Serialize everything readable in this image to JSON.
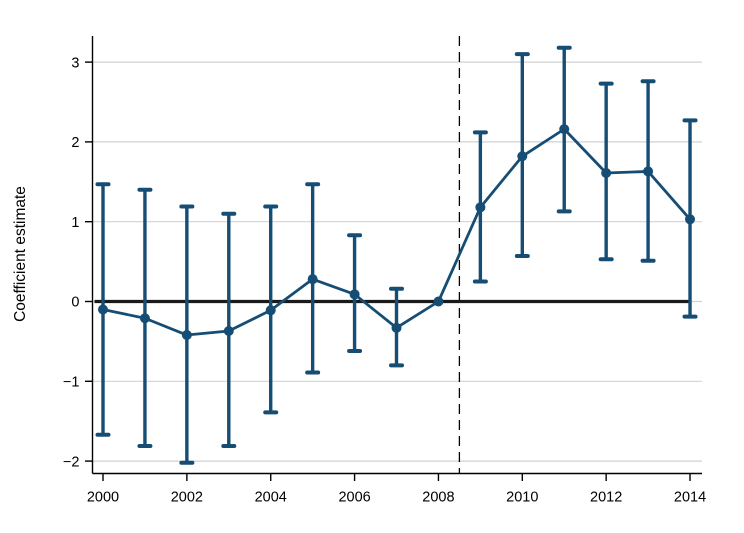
{
  "chart_data": {
    "type": "line",
    "subtype": "coefficient-plot-with-error-bars",
    "title": "",
    "xlabel": "",
    "ylabel": "Coefficient estimate",
    "x": [
      2000,
      2001,
      2002,
      2003,
      2004,
      2005,
      2006,
      2007,
      2008,
      2009,
      2010,
      2011,
      2012,
      2013,
      2014
    ],
    "series": [
      {
        "name": "coefficient-estimate",
        "values": [
          -0.1,
          -0.21,
          -0.42,
          -0.37,
          -0.11,
          0.28,
          0.09,
          -0.33,
          0.0,
          1.18,
          1.82,
          2.16,
          1.61,
          1.63,
          1.03
        ],
        "ci_lower": [
          -1.67,
          -1.81,
          -2.02,
          -1.81,
          -1.39,
          -0.89,
          -0.62,
          -0.8,
          null,
          0.25,
          0.57,
          1.13,
          0.53,
          0.51,
          -0.19
        ],
        "ci_upper": [
          1.47,
          1.4,
          1.19,
          1.1,
          1.19,
          1.47,
          0.83,
          0.16,
          null,
          2.12,
          3.1,
          3.18,
          2.73,
          2.76,
          2.27
        ]
      }
    ],
    "reference_year_no_ci": 2008,
    "reference_line_y": 0,
    "vertical_dashed_line_x": 2008.5,
    "x_ticks": [
      2000,
      2002,
      2004,
      2006,
      2008,
      2010,
      2012,
      2014
    ],
    "x_tick_labels": [
      "2000",
      "2002",
      "2004",
      "2006",
      "2008",
      "2010",
      "2012",
      "2014"
    ],
    "y_ticks": [
      3,
      2,
      1,
      0,
      -1,
      -2
    ],
    "y_tick_labels": [
      "3",
      "2",
      "1",
      "0",
      "−1",
      "−2"
    ],
    "xlim": [
      1999.74,
      2014.3
    ],
    "ylim": [
      -2.15,
      3.33
    ],
    "grid": "horizontal",
    "legend": "none",
    "colors": {
      "series": "#164d74",
      "grid": "#d2d2d2",
      "axis": "#000000",
      "zero_line": "#1a1a1a",
      "dashed_line": "#000000",
      "background": "#ffffff"
    }
  }
}
